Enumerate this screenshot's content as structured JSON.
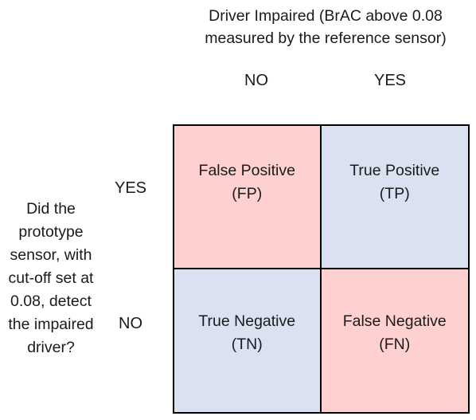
{
  "column_header": {
    "title": "Driver Impaired (BrAC above 0.08\nmeasured by the reference sensor)",
    "no_label": "NO",
    "yes_label": "YES"
  },
  "row_header": {
    "title": "Did the\nprototype\nsensor, with\ncut-off set at\n0.08, detect\nthe impaired\ndriver?",
    "yes_label": "YES",
    "no_label": "NO"
  },
  "matrix": {
    "false_positive": {
      "name": "False Positive",
      "abbr": "(FP)"
    },
    "true_positive": {
      "name": "True Positive",
      "abbr": "(TP)"
    },
    "true_negative": {
      "name": "True Negative",
      "abbr": "(TN)"
    },
    "false_negative": {
      "name": "False Negative",
      "abbr": "(FN)"
    }
  },
  "colors": {
    "false_cell": "#ffd0d0",
    "true_cell": "#dae2f2",
    "border": "#000000"
  }
}
